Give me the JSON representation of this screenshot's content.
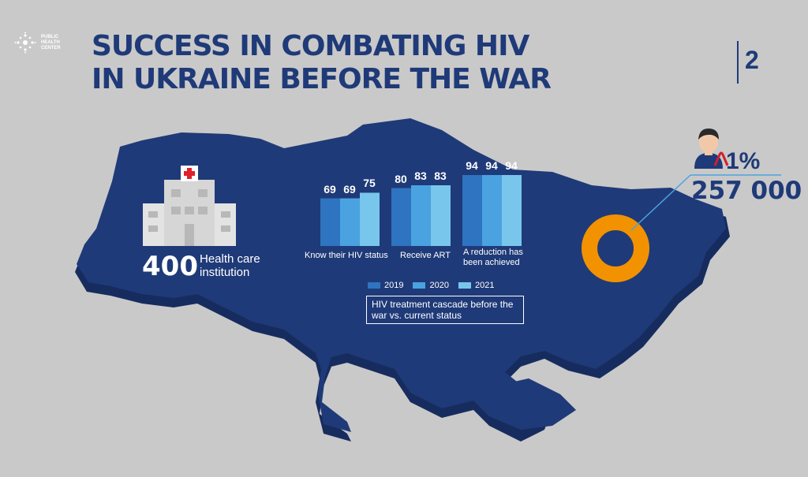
{
  "logo": {
    "text_line1": "PUBLIC",
    "text_line2": "HEALTH",
    "text_line3": "CENTER"
  },
  "title_line1": "SUCCESS IN COMBATING HIV",
  "title_line2": "IN UKRAINE BEFORE THE WAR",
  "page_number": "2",
  "health_care": {
    "count": "400",
    "label": "Health care institution"
  },
  "hiv_stat": {
    "percent": "1%",
    "count": "257 000"
  },
  "colors": {
    "map": "#1f3a78",
    "bar_2019": "#2e74c0",
    "bar_2020": "#4aa3e0",
    "bar_2021": "#79c6ec",
    "ring": "#f29200",
    "ribbon": "#d0202b"
  },
  "icons": [
    "hospital-icon",
    "person-icon",
    "red-ribbon-icon",
    "logo-icon"
  ],
  "chart_data": {
    "type": "bar",
    "title": "HIV treatment cascade before the war vs. current status",
    "categories": [
      "Know their HIV status",
      "Receive ART",
      "A reduction has been achieved"
    ],
    "series": [
      {
        "name": "2019",
        "values": [
          69,
          80,
          94
        ]
      },
      {
        "name": "2020",
        "values": [
          69,
          83,
          94
        ]
      },
      {
        "name": "2021",
        "values": [
          75,
          83,
          94
        ]
      }
    ],
    "legend": [
      "2019",
      "2020",
      "2021"
    ],
    "legend_position": "bottom",
    "ylim": [
      0,
      100
    ]
  }
}
